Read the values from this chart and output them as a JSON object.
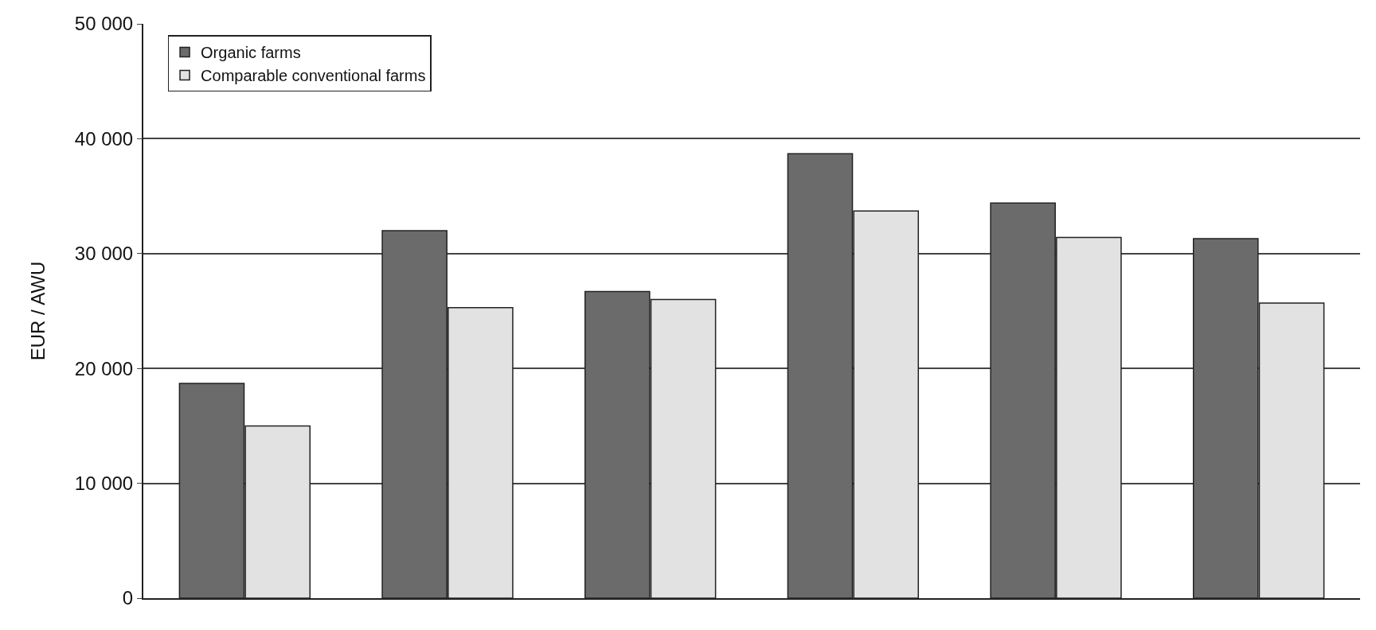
{
  "chart_data": {
    "type": "bar",
    "ylabel": "EUR / AWU",
    "categories": [
      null,
      null,
      null,
      null,
      null,
      null
    ],
    "series": [
      {
        "name": "Organic farms",
        "color": "#6b6b6b",
        "values": [
          18700,
          32000,
          26700,
          38700,
          34400,
          31300
        ]
      },
      {
        "name": "Comparable conventional farms",
        "color": "#e2e2e2",
        "values": [
          15000,
          25300,
          26000,
          33700,
          31400,
          25700
        ]
      }
    ],
    "ylim": [
      0,
      50000
    ],
    "yticks": [
      {
        "value": 0,
        "label": "0"
      },
      {
        "value": 10000,
        "label": "10 000"
      },
      {
        "value": 20000,
        "label": "20 000"
      },
      {
        "value": 30000,
        "label": "30 000"
      },
      {
        "value": 40000,
        "label": "40 000"
      },
      {
        "value": 50000,
        "label": "50 000"
      }
    ],
    "grid": "y",
    "legend": "top left",
    "tick_labels": "y"
  }
}
